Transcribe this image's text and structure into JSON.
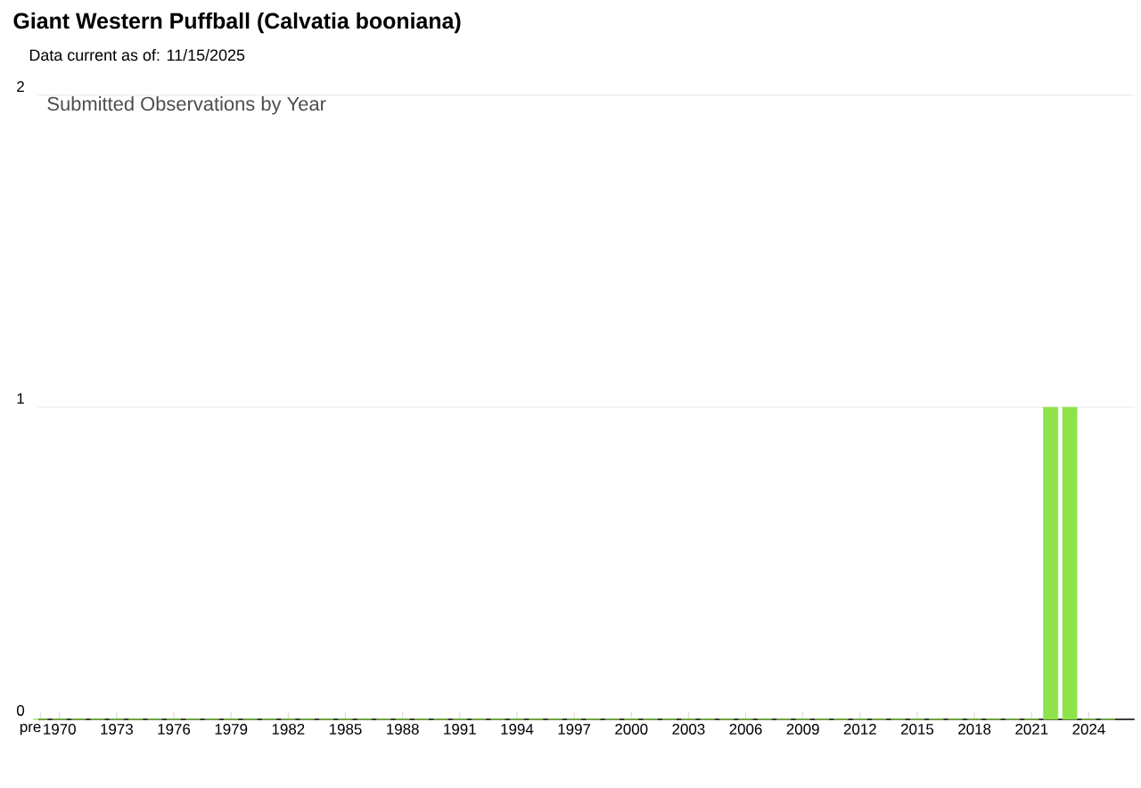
{
  "chart_data": {
    "type": "bar",
    "title": "Giant Western Puffball   (Calvatia booniana)",
    "subtitle": "Data current as of: 11/15/2025",
    "annotations": [
      "Submitted Observations by Year"
    ],
    "categories": [
      "pre",
      "1970",
      null,
      null,
      "1973",
      null,
      null,
      "1976",
      null,
      null,
      "1979",
      null,
      null,
      "1982",
      null,
      null,
      "1985",
      null,
      null,
      "1988",
      null,
      null,
      "1991",
      null,
      null,
      "1994",
      null,
      null,
      "1997",
      null,
      null,
      "2000",
      null,
      null,
      "2003",
      null,
      null,
      "2006",
      null,
      null,
      "2009",
      null,
      null,
      "2012",
      null,
      null,
      "2015",
      null,
      null,
      "2018",
      null,
      null,
      "2021",
      null,
      null,
      "2024",
      null
    ],
    "values": [
      0,
      0,
      0,
      0,
      0,
      0,
      0,
      0,
      0,
      0,
      0,
      0,
      0,
      0,
      0,
      0,
      0,
      0,
      0,
      0,
      0,
      0,
      0,
      0,
      0,
      0,
      0,
      0,
      0,
      0,
      0,
      0,
      0,
      0,
      0,
      0,
      0,
      0,
      0,
      0,
      0,
      0,
      0,
      0,
      0,
      0,
      0,
      0,
      0,
      0,
      0,
      0,
      0,
      1,
      1,
      0,
      0
    ],
    "color": "#8ee34a",
    "ylim": [
      0,
      2
    ],
    "yticks": [
      0,
      1,
      2
    ],
    "grid": "y"
  }
}
